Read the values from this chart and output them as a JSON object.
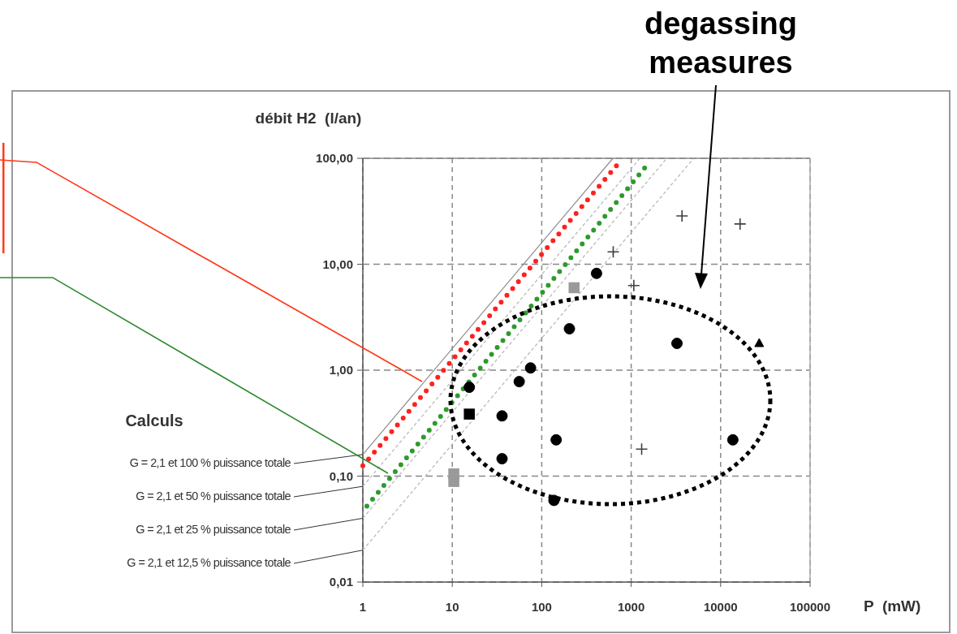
{
  "chart_data": {
    "type": "scatter",
    "ylabel": "débit H2  (l/an)",
    "xlabel": "P  (mW)",
    "annotations": [
      "Calculs",
      "degassing measures"
    ],
    "log": "xy",
    "grid": true,
    "legend": false,
    "xlim": [
      1,
      100000
    ],
    "xticks": [
      1,
      10,
      100,
      1000,
      10000,
      100000
    ],
    "ylim": [
      0.01,
      100
    ],
    "yticks": [
      {
        "value": 100,
        "label": "100,00"
      },
      {
        "value": 10,
        "label": "10,00"
      },
      {
        "value": 1,
        "label": "1,00"
      },
      {
        "value": 0.1,
        "label": "0,10"
      },
      {
        "value": 0.01,
        "label": "0,01"
      }
    ],
    "series": [
      {
        "type": "line",
        "name": "G = 2,1 et 100 % puissance totale",
        "color": "#8c8c8c",
        "line_style": "solid",
        "x": [
          1,
          625
        ],
        "values": [
          0.16,
          100
        ]
      },
      {
        "type": "line",
        "name": "G = 2,1 et 50 % puissance totale",
        "color": "#b4b4b4",
        "line_style": "dashed",
        "x": [
          1,
          1250
        ],
        "values": [
          0.08,
          100
        ]
      },
      {
        "type": "line",
        "name": "G = 2,1 et 25 % puissance totale",
        "color": "#b4b4b4",
        "line_style": "dashed",
        "x": [
          1,
          2500
        ],
        "values": [
          0.04,
          100
        ]
      },
      {
        "type": "line",
        "name": "G = 2,1 et 12,5 % puissance totale",
        "color": "#b4b4b4",
        "line_style": "dashed",
        "x": [
          1,
          5000
        ],
        "values": [
          0.02,
          100
        ]
      },
      {
        "type": "line",
        "color": "#ff2020",
        "line_style": "dotted",
        "x": [
          1,
          780
        ],
        "values": [
          0.125,
          97
        ]
      },
      {
        "type": "line",
        "color": "#2e9a2e",
        "line_style": "dotted",
        "x": [
          1.11,
          1550
        ],
        "values": [
          0.052,
          89
        ]
      },
      {
        "color": "#000000",
        "marker": "circle",
        "x": [
          15.5,
          36,
          36,
          56,
          75,
          204,
          410,
          145,
          137,
          3250,
          13700
        ],
        "values": [
          0.69,
          0.37,
          0.146,
          0.78,
          1.05,
          2.46,
          8.2,
          0.22,
          0.059,
          1.79,
          0.22
        ]
      },
      {
        "color": "#000000",
        "marker": "square",
        "x": [
          15.5
        ],
        "values": [
          0.385
        ]
      },
      {
        "color": "#9a9a9a",
        "marker": "square",
        "x": [
          10.4,
          10.4,
          230
        ],
        "values": [
          0.105,
          0.089,
          6.0
        ]
      },
      {
        "color": "#404040",
        "marker": "cross",
        "x": [
          630,
          1070,
          3700,
          16500,
          1310
        ],
        "values": [
          13.1,
          6.3,
          28.6,
          24,
          0.18
        ]
      },
      {
        "color": "#000000",
        "marker": "triangle",
        "x": [
          27000
        ],
        "values": [
          1.79
        ]
      }
    ]
  }
}
